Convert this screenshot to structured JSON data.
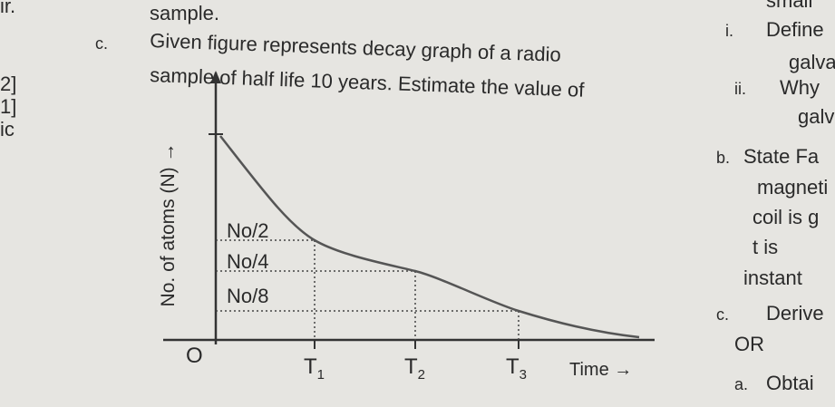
{
  "left_margin": [
    "ir.",
    "2]",
    "1]",
    "ic"
  ],
  "question": {
    "prev_line": "sample.",
    "number": "c.",
    "lines": [
      "Given figure represents decay graph of a radio",
      "sample of half life 10 years. Estimate the value of"
    ]
  },
  "graph": {
    "y_axis_label": "No. of atoms (N) →",
    "origin": "O",
    "x_axis_label": "Time →",
    "levels": [
      "No/2",
      "No/4",
      "No/8"
    ],
    "times": [
      {
        "main": "T",
        "sub": "1"
      },
      {
        "main": "T",
        "sub": "2"
      },
      {
        "main": "T",
        "sub": "3"
      }
    ]
  },
  "right_column": [
    {
      "marker": "",
      "text": "small"
    },
    {
      "marker": "i.",
      "text": "Define"
    },
    {
      "marker": "",
      "text": "galva"
    },
    {
      "marker": "ii.",
      "text": "Why"
    },
    {
      "marker": "",
      "text": "galva"
    },
    {
      "marker": "b.",
      "text": "State Fa"
    },
    {
      "marker": "",
      "text": "magneti"
    },
    {
      "marker": "",
      "text": "coil is g"
    },
    {
      "marker": "",
      "text": "t is"
    },
    {
      "marker": "",
      "text": "instant"
    },
    {
      "marker": "c.",
      "text": "Derive"
    },
    {
      "marker": "",
      "text": "OR"
    },
    {
      "marker": "a.",
      "text": "Obtai"
    }
  ]
}
